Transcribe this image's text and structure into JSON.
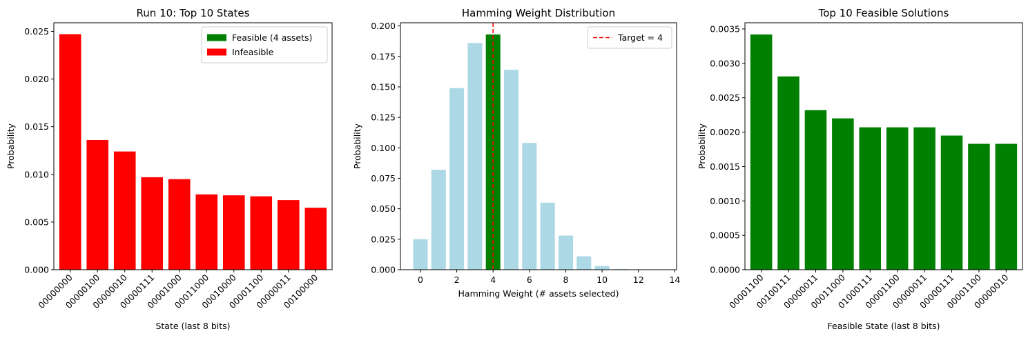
{
  "chart_data": [
    {
      "type": "bar",
      "title": "Run 10: Top 10 States",
      "xlabel": "State (last 8 bits)",
      "ylabel": "Probability",
      "categories": [
        "00000000",
        "00000100",
        "00000010",
        "00000111",
        "00001000",
        "00011000",
        "00010000",
        "00001100",
        "00000011",
        "00100000"
      ],
      "values": [
        0.0247,
        0.0136,
        0.0124,
        0.0097,
        0.0095,
        0.0079,
        0.0078,
        0.0077,
        0.0073,
        0.0065
      ],
      "bar_colors": [
        "#ff0000",
        "#ff0000",
        "#ff0000",
        "#ff0000",
        "#ff0000",
        "#ff0000",
        "#ff0000",
        "#ff0000",
        "#ff0000",
        "#ff0000"
      ],
      "ylim": [
        0,
        0.0259
      ],
      "yticks": [
        0.0,
        0.005,
        0.01,
        0.015,
        0.02,
        0.025
      ],
      "ytick_labels": [
        "0.000",
        "0.005",
        "0.010",
        "0.015",
        "0.020",
        "0.025"
      ],
      "xtick_rotation": 45,
      "legend": {
        "placement": "top-right",
        "entries": [
          {
            "label": "Feasible (4 assets)",
            "color": "#008000",
            "marker": "patch"
          },
          {
            "label": "Infeasible",
            "color": "#ff0000",
            "marker": "patch"
          }
        ]
      },
      "grid": false
    },
    {
      "type": "bar",
      "title": "Hamming Weight Distribution",
      "xlabel": "Hamming Weight (# assets selected)",
      "ylabel": "Probability",
      "x": [
        0,
        1,
        2,
        3,
        4,
        5,
        6,
        7,
        8,
        9,
        10,
        11,
        12,
        13
      ],
      "values": [
        0.025,
        0.082,
        0.149,
        0.186,
        0.193,
        0.164,
        0.104,
        0.055,
        0.028,
        0.011,
        0.003,
        0.0005,
        0.0001,
        0.0
      ],
      "bar_colors": [
        "#add8e6",
        "#add8e6",
        "#add8e6",
        "#add8e6",
        "#008000",
        "#add8e6",
        "#add8e6",
        "#add8e6",
        "#add8e6",
        "#add8e6",
        "#add8e6",
        "#add8e6",
        "#add8e6",
        "#add8e6"
      ],
      "xlim": [
        -1.1,
        14.1
      ],
      "xticks": [
        0,
        2,
        4,
        6,
        8,
        10,
        12,
        14
      ],
      "xtick_labels": [
        "0",
        "2",
        "4",
        "6",
        "8",
        "10",
        "12",
        "14"
      ],
      "ylim": [
        0,
        0.2026
      ],
      "yticks": [
        0.0,
        0.025,
        0.05,
        0.075,
        0.1,
        0.125,
        0.15,
        0.175,
        0.2
      ],
      "ytick_labels": [
        "0.000",
        "0.025",
        "0.050",
        "0.075",
        "0.100",
        "0.125",
        "0.150",
        "0.175",
        "0.200"
      ],
      "vline": {
        "x": 4,
        "color": "#ff0000",
        "style": "dashed",
        "label": "Target = 4"
      },
      "legend": {
        "placement": "top-right",
        "entries": [
          {
            "label": "Target = 4",
            "color": "#ff0000",
            "marker": "dashed-line"
          }
        ]
      },
      "grid": false
    },
    {
      "type": "bar",
      "title": "Top 10 Feasible Solutions",
      "xlabel": "Feasible State (last 8 bits)",
      "ylabel": "Probability",
      "categories": [
        "00001100",
        "00100111",
        "00000011",
        "00011000",
        "01000111",
        "00001100",
        "00000011",
        "00000111",
        "00001100",
        "00000010"
      ],
      "values": [
        0.00342,
        0.00281,
        0.00232,
        0.0022,
        0.00207,
        0.00207,
        0.00207,
        0.00195,
        0.00183,
        0.00183
      ],
      "bar_colors": [
        "#008000",
        "#008000",
        "#008000",
        "#008000",
        "#008000",
        "#008000",
        "#008000",
        "#008000",
        "#008000",
        "#008000"
      ],
      "ylim": [
        0,
        0.00359
      ],
      "yticks": [
        0.0,
        0.0005,
        0.001,
        0.0015,
        0.002,
        0.0025,
        0.003,
        0.0035
      ],
      "ytick_labels": [
        "0.0000",
        "0.0005",
        "0.0010",
        "0.0015",
        "0.0020",
        "0.0025",
        "0.0030",
        "0.0035"
      ],
      "xtick_rotation": 45,
      "grid": false
    }
  ]
}
